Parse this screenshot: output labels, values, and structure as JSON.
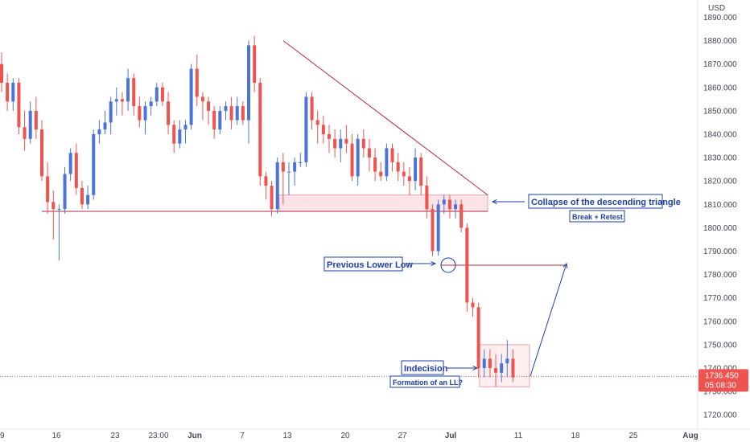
{
  "chart_data": {
    "type": "candlestick",
    "currency": "USD",
    "y_ticks": [
      "1890.000",
      "1880.000",
      "1870.000",
      "1860.000",
      "1850.000",
      "1840.000",
      "1830.000",
      "1820.000",
      "1810.000",
      "1800.000",
      "1790.000",
      "1780.000",
      "1770.000",
      "1760.000",
      "1750.000",
      "1740.000",
      "1730.000",
      "1720.000"
    ],
    "y_tick_values": [
      1890,
      1880,
      1870,
      1860,
      1850,
      1840,
      1830,
      1820,
      1810,
      1800,
      1790,
      1780,
      1770,
      1760,
      1750,
      1740,
      1730,
      1720
    ],
    "ylim": [
      1716,
      1895
    ],
    "x_ticks": [
      "9",
      "16",
      "23",
      "23:00",
      "Jun",
      "7",
      "13",
      "20",
      "27",
      "Jul",
      "11",
      "18",
      "25",
      "Aug"
    ],
    "x_tick_bold": [
      false,
      false,
      false,
      false,
      true,
      false,
      false,
      false,
      false,
      true,
      false,
      false,
      false,
      true
    ],
    "last_price": "1736.450",
    "countdown": "05:08:30",
    "colors": {
      "up": "#4a74d8",
      "down": "#ef5350",
      "annotation": "#1e3fa8",
      "trendline": "#b22a40",
      "zone": "#fbe3e6"
    },
    "series": [
      {
        "o": 1870,
        "h": 1875,
        "l": 1858,
        "c": 1862
      },
      {
        "o": 1862,
        "h": 1866,
        "l": 1850,
        "c": 1854
      },
      {
        "o": 1854,
        "h": 1864,
        "l": 1850,
        "c": 1862
      },
      {
        "o": 1862,
        "h": 1864,
        "l": 1840,
        "c": 1843
      },
      {
        "o": 1843,
        "h": 1850,
        "l": 1833,
        "c": 1838
      },
      {
        "o": 1838,
        "h": 1854,
        "l": 1836,
        "c": 1850
      },
      {
        "o": 1850,
        "h": 1856,
        "l": 1838,
        "c": 1842
      },
      {
        "o": 1842,
        "h": 1846,
        "l": 1820,
        "c": 1822
      },
      {
        "o": 1822,
        "h": 1828,
        "l": 1806,
        "c": 1811
      },
      {
        "o": 1811,
        "h": 1816,
        "l": 1795,
        "c": 1808
      },
      {
        "o": 1808,
        "h": 1810,
        "l": 1786,
        "c": 1808
      },
      {
        "o": 1808,
        "h": 1826,
        "l": 1806,
        "c": 1823
      },
      {
        "o": 1823,
        "h": 1834,
        "l": 1820,
        "c": 1832
      },
      {
        "o": 1832,
        "h": 1836,
        "l": 1814,
        "c": 1817
      },
      {
        "o": 1817,
        "h": 1820,
        "l": 1808,
        "c": 1810
      },
      {
        "o": 1810,
        "h": 1818,
        "l": 1808,
        "c": 1814
      },
      {
        "o": 1814,
        "h": 1842,
        "l": 1812,
        "c": 1840
      },
      {
        "o": 1840,
        "h": 1846,
        "l": 1836,
        "c": 1842
      },
      {
        "o": 1842,
        "h": 1850,
        "l": 1840,
        "c": 1845
      },
      {
        "o": 1845,
        "h": 1856,
        "l": 1840,
        "c": 1854
      },
      {
        "o": 1854,
        "h": 1860,
        "l": 1848,
        "c": 1855
      },
      {
        "o": 1855,
        "h": 1858,
        "l": 1848,
        "c": 1854
      },
      {
        "o": 1854,
        "h": 1868,
        "l": 1850,
        "c": 1864
      },
      {
        "o": 1864,
        "h": 1866,
        "l": 1848,
        "c": 1852
      },
      {
        "o": 1852,
        "h": 1856,
        "l": 1843,
        "c": 1846
      },
      {
        "o": 1846,
        "h": 1854,
        "l": 1840,
        "c": 1852
      },
      {
        "o": 1852,
        "h": 1856,
        "l": 1848,
        "c": 1854
      },
      {
        "o": 1854,
        "h": 1862,
        "l": 1852,
        "c": 1860
      },
      {
        "o": 1860,
        "h": 1862,
        "l": 1852,
        "c": 1854
      },
      {
        "o": 1854,
        "h": 1858,
        "l": 1840,
        "c": 1844
      },
      {
        "o": 1844,
        "h": 1846,
        "l": 1832,
        "c": 1836
      },
      {
        "o": 1836,
        "h": 1846,
        "l": 1834,
        "c": 1842
      },
      {
        "o": 1842,
        "h": 1846,
        "l": 1836,
        "c": 1844
      },
      {
        "o": 1844,
        "h": 1870,
        "l": 1842,
        "c": 1868
      },
      {
        "o": 1868,
        "h": 1874,
        "l": 1852,
        "c": 1856
      },
      {
        "o": 1856,
        "h": 1858,
        "l": 1846,
        "c": 1854
      },
      {
        "o": 1854,
        "h": 1856,
        "l": 1844,
        "c": 1850
      },
      {
        "o": 1850,
        "h": 1852,
        "l": 1838,
        "c": 1842
      },
      {
        "o": 1842,
        "h": 1852,
        "l": 1840,
        "c": 1850
      },
      {
        "o": 1850,
        "h": 1854,
        "l": 1846,
        "c": 1852
      },
      {
        "o": 1852,
        "h": 1856,
        "l": 1842,
        "c": 1846
      },
      {
        "o": 1846,
        "h": 1856,
        "l": 1844,
        "c": 1852
      },
      {
        "o": 1852,
        "h": 1854,
        "l": 1844,
        "c": 1846
      },
      {
        "o": 1846,
        "h": 1880,
        "l": 1836,
        "c": 1878
      },
      {
        "o": 1878,
        "h": 1882,
        "l": 1858,
        "c": 1862
      },
      {
        "o": 1862,
        "h": 1864,
        "l": 1818,
        "c": 1822
      },
      {
        "o": 1822,
        "h": 1824,
        "l": 1812,
        "c": 1818
      },
      {
        "o": 1818,
        "h": 1820,
        "l": 1805,
        "c": 1808
      },
      {
        "o": 1808,
        "h": 1830,
        "l": 1806,
        "c": 1828
      },
      {
        "o": 1828,
        "h": 1832,
        "l": 1810,
        "c": 1824
      },
      {
        "o": 1824,
        "h": 1828,
        "l": 1814,
        "c": 1824
      },
      {
        "o": 1824,
        "h": 1830,
        "l": 1818,
        "c": 1828
      },
      {
        "o": 1828,
        "h": 1832,
        "l": 1826,
        "c": 1828
      },
      {
        "o": 1828,
        "h": 1858,
        "l": 1826,
        "c": 1856
      },
      {
        "o": 1856,
        "h": 1858,
        "l": 1842,
        "c": 1846
      },
      {
        "o": 1846,
        "h": 1850,
        "l": 1836,
        "c": 1844
      },
      {
        "o": 1844,
        "h": 1848,
        "l": 1836,
        "c": 1840
      },
      {
        "o": 1840,
        "h": 1844,
        "l": 1832,
        "c": 1838
      },
      {
        "o": 1838,
        "h": 1842,
        "l": 1830,
        "c": 1834
      },
      {
        "o": 1834,
        "h": 1842,
        "l": 1828,
        "c": 1838
      },
      {
        "o": 1838,
        "h": 1844,
        "l": 1832,
        "c": 1836
      },
      {
        "o": 1836,
        "h": 1840,
        "l": 1820,
        "c": 1822
      },
      {
        "o": 1822,
        "h": 1840,
        "l": 1818,
        "c": 1838
      },
      {
        "o": 1838,
        "h": 1842,
        "l": 1830,
        "c": 1834
      },
      {
        "o": 1834,
        "h": 1838,
        "l": 1824,
        "c": 1830
      },
      {
        "o": 1830,
        "h": 1834,
        "l": 1820,
        "c": 1824
      },
      {
        "o": 1824,
        "h": 1828,
        "l": 1820,
        "c": 1822
      },
      {
        "o": 1822,
        "h": 1836,
        "l": 1820,
        "c": 1834
      },
      {
        "o": 1834,
        "h": 1836,
        "l": 1824,
        "c": 1828
      },
      {
        "o": 1828,
        "h": 1832,
        "l": 1820,
        "c": 1824
      },
      {
        "o": 1824,
        "h": 1828,
        "l": 1818,
        "c": 1822
      },
      {
        "o": 1822,
        "h": 1826,
        "l": 1814,
        "c": 1820
      },
      {
        "o": 1820,
        "h": 1834,
        "l": 1816,
        "c": 1830
      },
      {
        "o": 1830,
        "h": 1832,
        "l": 1814,
        "c": 1818
      },
      {
        "o": 1818,
        "h": 1822,
        "l": 1804,
        "c": 1808
      },
      {
        "o": 1808,
        "h": 1810,
        "l": 1788,
        "c": 1790
      },
      {
        "o": 1790,
        "h": 1812,
        "l": 1788,
        "c": 1810
      },
      {
        "o": 1810,
        "h": 1814,
        "l": 1806,
        "c": 1812
      },
      {
        "o": 1812,
        "h": 1814,
        "l": 1804,
        "c": 1808
      },
      {
        "o": 1808,
        "h": 1812,
        "l": 1804,
        "c": 1810
      },
      {
        "o": 1810,
        "h": 1812,
        "l": 1798,
        "c": 1800
      },
      {
        "o": 1800,
        "h": 1802,
        "l": 1764,
        "c": 1768
      },
      {
        "o": 1768,
        "h": 1770,
        "l": 1762,
        "c": 1766
      },
      {
        "o": 1766,
        "h": 1768,
        "l": 1736,
        "c": 1740
      },
      {
        "o": 1740,
        "h": 1748,
        "l": 1736,
        "c": 1744
      },
      {
        "o": 1744,
        "h": 1748,
        "l": 1736,
        "c": 1740
      },
      {
        "o": 1740,
        "h": 1746,
        "l": 1732,
        "c": 1738
      },
      {
        "o": 1738,
        "h": 1746,
        "l": 1734,
        "c": 1742
      },
      {
        "o": 1742,
        "h": 1752,
        "l": 1736,
        "c": 1744
      },
      {
        "o": 1744,
        "h": 1748,
        "l": 1734,
        "c": 1736
      }
    ],
    "annotations": [
      {
        "id": "collapse",
        "text": "Collapse of the descending triangle",
        "sub": "Break + Retest"
      },
      {
        "id": "prev_ll",
        "text": "Previous Lower Low"
      },
      {
        "id": "indecision",
        "text": "Indecision",
        "sub": "Formation of an LL?"
      }
    ]
  }
}
